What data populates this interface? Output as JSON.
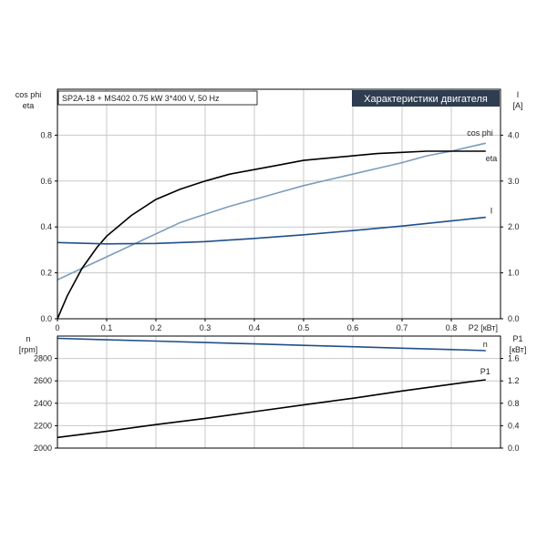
{
  "chart_data": [
    {
      "type": "line",
      "info": "SP2A-18 + MS402  0.75 kW  3*400 V, 50 Hz",
      "title": "Характеристики двигателя",
      "left_axis_labels": [
        "cos phi",
        "eta"
      ],
      "right_axis_labels": [
        "I",
        "[A]"
      ],
      "xlabel": "P2 [кВт]",
      "xlim": [
        0,
        0.9
      ],
      "x_ticks": [
        "0",
        "0.1",
        "0.2",
        "0.3",
        "0.4",
        "0.5",
        "0.6",
        "0.7",
        "0.8"
      ],
      "ylim_left": [
        0,
        1.0
      ],
      "y_ticks_left": [
        "0.0",
        "0.2",
        "0.4",
        "0.6",
        "0.8"
      ],
      "ylim_right": [
        0,
        5.0
      ],
      "y_ticks_right": [
        "0.0",
        "1.0",
        "2.0",
        "3.0",
        "4.0"
      ],
      "grid": true,
      "series": [
        {
          "name": "cos phi",
          "axis": "left",
          "color": "#7a9cbc",
          "x": [
            0,
            0.05,
            0.1,
            0.15,
            0.2,
            0.25,
            0.3,
            0.35,
            0.4,
            0.45,
            0.5,
            0.55,
            0.6,
            0.65,
            0.7,
            0.75,
            0.8,
            0.85,
            0.87
          ],
          "y": [
            0.17,
            0.22,
            0.27,
            0.32,
            0.37,
            0.42,
            0.455,
            0.49,
            0.52,
            0.55,
            0.58,
            0.605,
            0.63,
            0.655,
            0.68,
            0.71,
            0.73,
            0.755,
            0.765
          ]
        },
        {
          "name": "eta",
          "axis": "left",
          "color": "#000000",
          "x": [
            0,
            0.02,
            0.05,
            0.08,
            0.1,
            0.15,
            0.2,
            0.25,
            0.3,
            0.35,
            0.4,
            0.45,
            0.5,
            0.55,
            0.6,
            0.65,
            0.7,
            0.75,
            0.8,
            0.87
          ],
          "y": [
            0,
            0.1,
            0.22,
            0.31,
            0.36,
            0.45,
            0.52,
            0.565,
            0.6,
            0.63,
            0.65,
            0.67,
            0.69,
            0.7,
            0.71,
            0.72,
            0.725,
            0.73,
            0.73,
            0.73
          ]
        },
        {
          "name": "I",
          "axis": "right",
          "color": "#1f4f8a",
          "x": [
            0,
            0.1,
            0.2,
            0.3,
            0.4,
            0.5,
            0.6,
            0.7,
            0.8,
            0.87
          ],
          "y": [
            1.66,
            1.63,
            1.64,
            1.68,
            1.75,
            1.83,
            1.92,
            2.02,
            2.13,
            2.21
          ]
        }
      ]
    },
    {
      "type": "line",
      "left_axis_labels": [
        "n",
        "[rpm]"
      ],
      "right_axis_labels": [
        "P1",
        "[кВт]"
      ],
      "xlim": [
        0,
        0.9
      ],
      "ylim_left": [
        2000,
        3000
      ],
      "y_ticks_left": [
        "2000",
        "2200",
        "2400",
        "2600",
        "2800"
      ],
      "ylim_right": [
        0,
        2.0
      ],
      "y_ticks_right": [
        "0.0",
        "0.4",
        "0.8",
        "1.2",
        "1.6"
      ],
      "grid": true,
      "series": [
        {
          "name": "n",
          "axis": "left",
          "color": "#1f4f8a",
          "x": [
            0,
            0.1,
            0.2,
            0.3,
            0.4,
            0.5,
            0.6,
            0.7,
            0.8,
            0.87
          ],
          "y": [
            2980,
            2967,
            2955,
            2942,
            2930,
            2917,
            2905,
            2892,
            2880,
            2870
          ]
        },
        {
          "name": "P1",
          "axis": "right",
          "color": "#000000",
          "x": [
            0,
            0.1,
            0.2,
            0.3,
            0.4,
            0.5,
            0.6,
            0.7,
            0.8,
            0.87
          ],
          "y": [
            0.19,
            0.3,
            0.42,
            0.53,
            0.65,
            0.77,
            0.89,
            1.02,
            1.14,
            1.22
          ]
        }
      ]
    }
  ]
}
